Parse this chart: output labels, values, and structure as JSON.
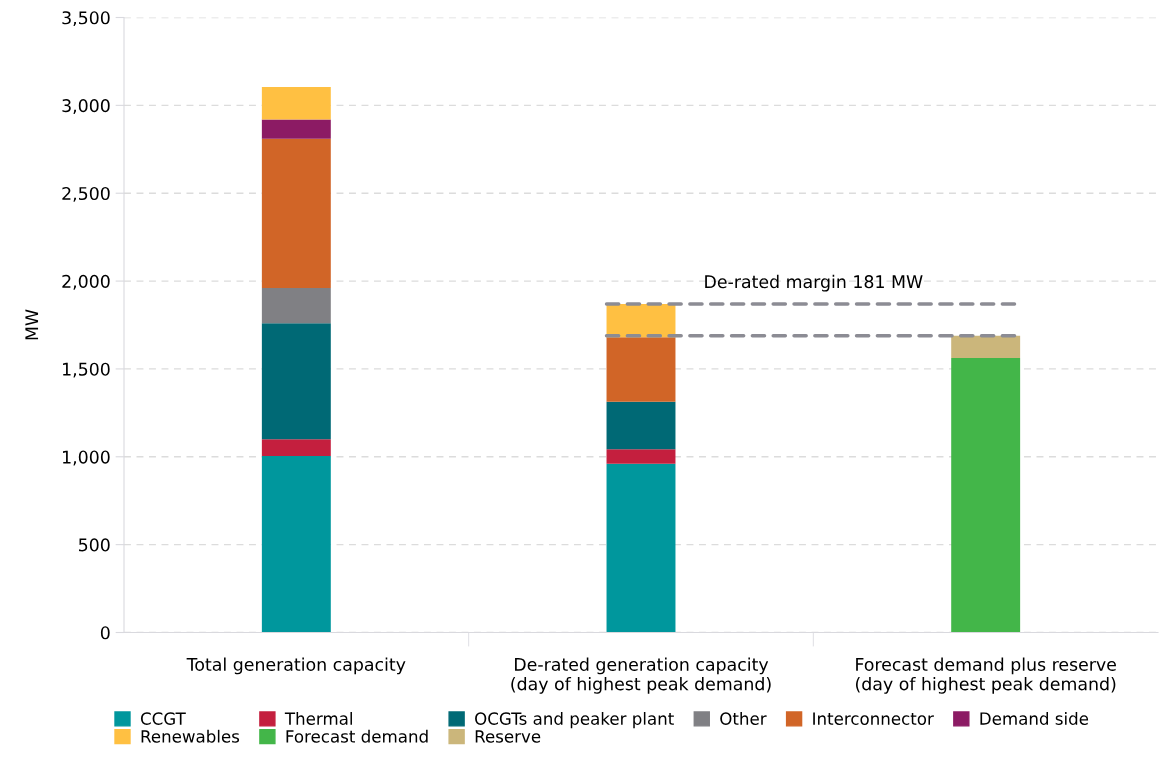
{
  "chart_data": {
    "type": "bar",
    "stacked": true,
    "ylabel": "MW",
    "categories": [
      "Total generation capacity",
      "De-rated generation capacity\n(day of highest peak demand)",
      "Forecast demand plus reserve\n(day of highest peak demand)"
    ],
    "series": [
      {
        "name": "CCGT",
        "color": "#00979d",
        "values": [
          1005,
          960,
          null
        ]
      },
      {
        "name": "Thermal",
        "color": "#c41f3e",
        "values": [
          95,
          83,
          null
        ]
      },
      {
        "name": "OCGTs and peaker plant",
        "color": "#006975",
        "values": [
          660,
          270,
          null
        ]
      },
      {
        "name": "Other",
        "color": "#808084",
        "values": [
          200,
          null,
          null
        ]
      },
      {
        "name": "Interconnector",
        "color": "#d16527",
        "values": [
          850,
          367,
          null
        ]
      },
      {
        "name": "Demand side",
        "color": "#8c1b64",
        "values": [
          110,
          null,
          null
        ]
      },
      {
        "name": "Renewables",
        "color": "#ffc042",
        "values": [
          185,
          190,
          null
        ]
      },
      {
        "name": "Forecast demand",
        "color": "#43b649",
        "values": [
          null,
          null,
          1562
        ]
      },
      {
        "name": "Reserve",
        "color": "#cbb67b",
        "values": [
          null,
          null,
          127
        ]
      }
    ],
    "ylim": [
      0,
      3500
    ],
    "yticks": [
      0,
      {
        "value": 500,
        "label": "500"
      },
      {
        "value": 1000,
        "label": "1,000"
      },
      {
        "value": 1500,
        "label": "1,500"
      },
      {
        "value": 2000,
        "label": "2,000"
      },
      {
        "value": 2500,
        "label": "2,500"
      },
      {
        "value": 3000,
        "label": "3,000"
      },
      {
        "value": 3500,
        "label": "3,500"
      }
    ],
    "grid": "y",
    "legend": "bottom",
    "ref_lines": [
      {
        "axis": "y",
        "value": 1870,
        "label": "De-rated margin 181 MW",
        "color": "#8c8c94",
        "line_style": "dashed"
      },
      {
        "axis": "y",
        "value": 1689,
        "label": null,
        "color": "#8c8c94",
        "line_style": "dashed"
      }
    ]
  }
}
